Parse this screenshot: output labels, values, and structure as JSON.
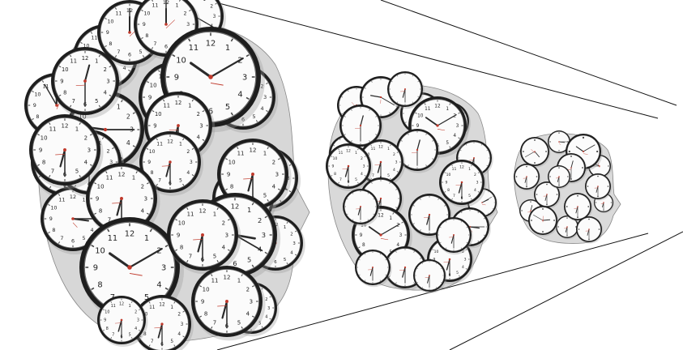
{
  "scene": {
    "subject": "clock-heads",
    "clock_numerals": [
      "12",
      "1",
      "2",
      "3",
      "4",
      "5",
      "6",
      "7",
      "8",
      "9",
      "10",
      "11"
    ],
    "colors": {
      "background": "#ffffff",
      "face": "#fbfbfb",
      "rim": "#1e1e1e",
      "rim_inner": "#6a6a6a",
      "hands": "#2a2a2a",
      "second_hand": "#c0392b",
      "tick": "#444444",
      "lines": "#111111"
    }
  }
}
